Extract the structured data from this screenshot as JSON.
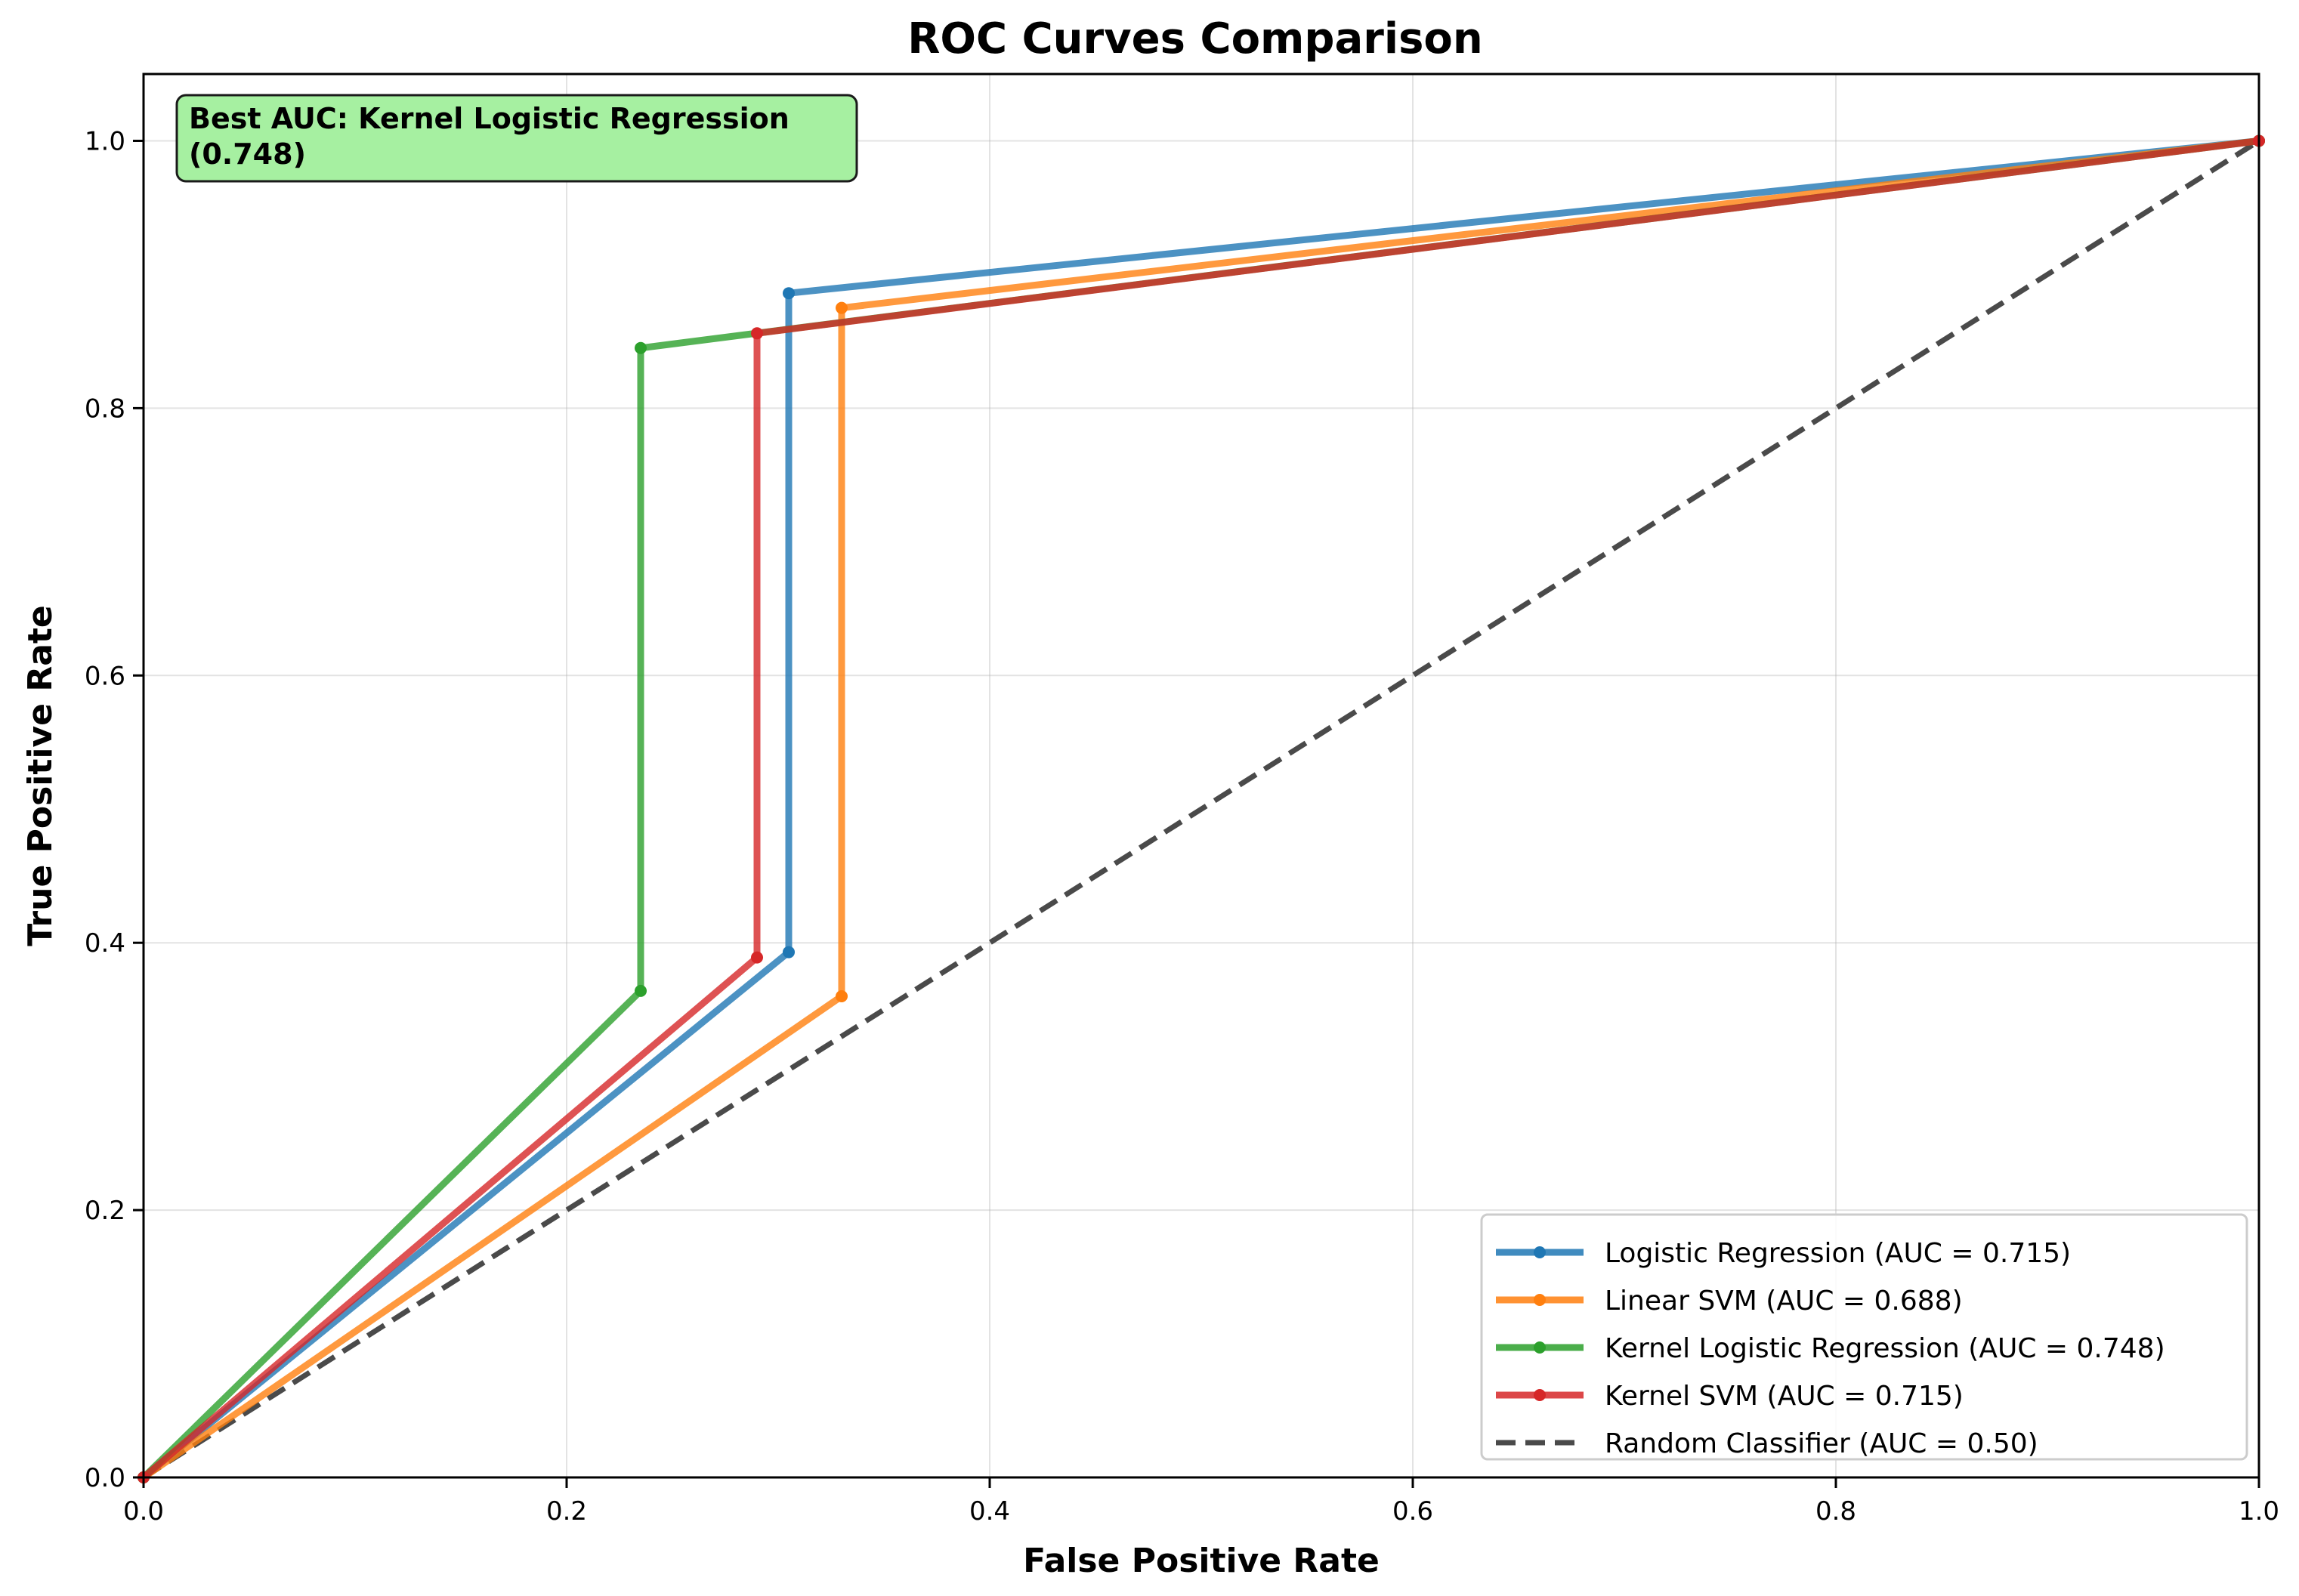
{
  "chart_data": {
    "type": "line",
    "title": "ROC Curves Comparison",
    "xlabel": "False Positive Rate",
    "ylabel": "True Positive Rate",
    "xlim": [
      0.0,
      1.0
    ],
    "ylim": [
      0.0,
      1.05
    ],
    "xticks": [
      "0.0",
      "0.2",
      "0.4",
      "0.6",
      "0.8",
      "1.0"
    ],
    "yticks": [
      "0.0",
      "0.2",
      "0.4",
      "0.6",
      "0.8",
      "1.0"
    ],
    "grid": true,
    "legend_position": "lower-right",
    "annotation": {
      "lines": [
        "Best AUC: Kernel Logistic Regression",
        "(0.748)"
      ],
      "background": "#a6f0a1",
      "position": "top-left"
    },
    "series": [
      {
        "name": "Logistic Regression (AUC = 0.715)",
        "color": "#1f77b4",
        "style": "solid",
        "markers": true,
        "x": [
          0.0,
          0.305,
          0.305,
          1.0
        ],
        "y": [
          0.0,
          0.393,
          0.886,
          1.0
        ]
      },
      {
        "name": "Linear SVM (AUC = 0.688)",
        "color": "#ff7f0e",
        "style": "solid",
        "markers": true,
        "x": [
          0.0,
          0.33,
          0.33,
          1.0
        ],
        "y": [
          0.0,
          0.36,
          0.875,
          1.0
        ]
      },
      {
        "name": "Kernel Logistic Regression (AUC = 0.748)",
        "color": "#2ca02c",
        "style": "solid",
        "markers": true,
        "x": [
          0.0,
          0.235,
          0.235,
          1.0
        ],
        "y": [
          0.0,
          0.364,
          0.845,
          1.0
        ]
      },
      {
        "name": "Kernel SVM (AUC = 0.715)",
        "color": "#d62728",
        "style": "solid",
        "markers": true,
        "x": [
          0.0,
          0.29,
          0.29,
          1.0
        ],
        "y": [
          0.0,
          0.389,
          0.856,
          1.0
        ]
      },
      {
        "name": "Random Classifier (AUC = 0.50)",
        "color": "#404040",
        "style": "dashed",
        "markers": false,
        "x": [
          0.0,
          1.0
        ],
        "y": [
          0.0,
          1.0
        ]
      }
    ]
  }
}
